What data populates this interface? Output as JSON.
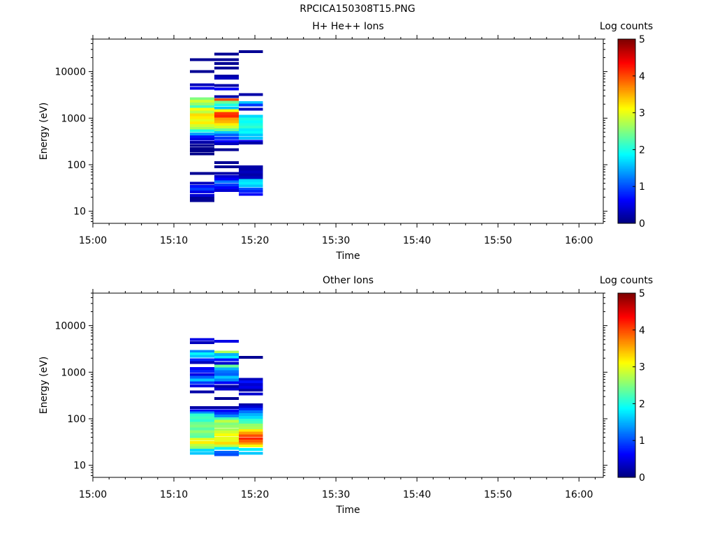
{
  "title": "RPCICA150308T15.PNG",
  "chart_data": [
    {
      "type": "heatmap",
      "title": "H+ He++ Ions",
      "xlabel": "Time",
      "ylabel": "Energy (eV)",
      "x_ticks": [
        "15:00",
        "15:10",
        "15:20",
        "15:30",
        "15:40",
        "15:50",
        "16:00"
      ],
      "y_ticks": [
        "10",
        "100",
        "1000",
        "10000"
      ],
      "yscale": "log",
      "ylim": [
        5.5,
        50000
      ],
      "colorbar": {
        "label": "Log counts",
        "ticks": [
          "0",
          "1",
          "2",
          "3",
          "4",
          "5"
        ],
        "range": [
          0,
          5
        ],
        "colormap": "jet"
      },
      "columns": [
        {
          "start": "15:12",
          "end": "15:15",
          "bins": [
            [
              18000,
              0.1
            ],
            [
              10000,
              0.1
            ],
            [
              5200,
              0.3
            ],
            [
              4400,
              0.5
            ],
            [
              2600,
              2.5
            ],
            [
              2300,
              2.9
            ],
            [
              2000,
              2.6
            ],
            [
              1750,
              2.2
            ],
            [
              1550,
              3.1
            ],
            [
              1350,
              2.8
            ],
            [
              1180,
              3.3
            ],
            [
              1030,
              3.2
            ],
            [
              900,
              3.0
            ],
            [
              790,
              3.2
            ],
            [
              690,
              2.9
            ],
            [
              600,
              2.7
            ],
            [
              530,
              2.0
            ],
            [
              460,
              1.4
            ],
            [
              400,
              0.7
            ],
            [
              350,
              0.5
            ],
            [
              300,
              0.2
            ],
            [
              260,
              0.1
            ],
            [
              220,
              0.05
            ],
            [
              200,
              0.05
            ],
            [
              170,
              0.05
            ],
            [
              65,
              0.1
            ],
            [
              40,
              0.3
            ],
            [
              34,
              0.7
            ],
            [
              30,
              0.9
            ],
            [
              26,
              0.5
            ],
            [
              22,
              0.4
            ],
            [
              19,
              0.1
            ],
            [
              17,
              0.1
            ]
          ]
        },
        {
          "start": "15:15",
          "end": "15:18",
          "bins": [
            [
              24000,
              0.1
            ],
            [
              18000,
              0.1
            ],
            [
              15000,
              0.1
            ],
            [
              12000,
              0.1
            ],
            [
              8000,
              0.2
            ],
            [
              7200,
              0.3
            ],
            [
              5000,
              0.2
            ],
            [
              4200,
              0.6
            ],
            [
              2900,
              0.2
            ],
            [
              2500,
              4.0
            ],
            [
              2200,
              2.4
            ],
            [
              1900,
              2.0
            ],
            [
              1650,
              1.6
            ],
            [
              1450,
              3.1
            ],
            [
              1270,
              4.1
            ],
            [
              1100,
              4.2
            ],
            [
              960,
              3.6
            ],
            [
              840,
              3.5
            ],
            [
              730,
              3.2
            ],
            [
              640,
              2.9
            ],
            [
              560,
              2.4
            ],
            [
              490,
              1.6
            ],
            [
              430,
              1.1
            ],
            [
              370,
              0.9
            ],
            [
              320,
              0.6
            ],
            [
              280,
              0.3
            ],
            [
              210,
              0.1
            ],
            [
              110,
              0.1
            ],
            [
              90,
              0.1
            ],
            [
              65,
              0.2
            ],
            [
              56,
              0.4
            ],
            [
              49,
              0.6
            ],
            [
              43,
              1.2
            ],
            [
              37,
              0.9
            ],
            [
              32,
              0.6
            ],
            [
              28,
              0.4
            ]
          ]
        },
        {
          "start": "15:18",
          "end": "15:21",
          "bins": [
            [
              27000,
              0.1
            ],
            [
              3200,
              0.2
            ],
            [
              2150,
              1.6
            ],
            [
              1900,
              0.9
            ],
            [
              1550,
              0.3
            ],
            [
              1100,
              1.7
            ],
            [
              960,
              2.0
            ],
            [
              840,
              1.9
            ],
            [
              730,
              2.0
            ],
            [
              640,
              2.1
            ],
            [
              560,
              1.8
            ],
            [
              490,
              1.9
            ],
            [
              430,
              1.6
            ],
            [
              370,
              1.6
            ],
            [
              320,
              0.5
            ],
            [
              290,
              0.2
            ],
            [
              90,
              0.2
            ],
            [
              80,
              0.2
            ],
            [
              70,
              0.3
            ],
            [
              61,
              0.2
            ],
            [
              53,
              0.3
            ],
            [
              46,
              1.7
            ],
            [
              40,
              1.8
            ],
            [
              35,
              1.6
            ],
            [
              30,
              1.0
            ],
            [
              27,
              0.8
            ],
            [
              23,
              0.6
            ]
          ]
        }
      ]
    },
    {
      "type": "heatmap",
      "title": "Other Ions",
      "xlabel": "Time",
      "ylabel": "Energy (eV)",
      "x_ticks": [
        "15:00",
        "15:10",
        "15:20",
        "15:30",
        "15:40",
        "15:50",
        "16:00"
      ],
      "y_ticks": [
        "10",
        "100",
        "1000",
        "10000"
      ],
      "yscale": "log",
      "ylim": [
        5.5,
        50000
      ],
      "colorbar": {
        "label": "Log counts",
        "ticks": [
          "0",
          "1",
          "2",
          "3",
          "4",
          "5"
        ],
        "range": [
          0,
          5
        ],
        "colormap": "jet"
      },
      "columns": [
        {
          "start": "15:12",
          "end": "15:15",
          "bins": [
            [
              5000,
              0.5
            ],
            [
              4300,
              0.3
            ],
            [
              2800,
              1.3
            ],
            [
              2500,
              1.9
            ],
            [
              2200,
              1.6
            ],
            [
              1850,
              0.8
            ],
            [
              1600,
              0.3
            ],
            [
              1200,
              0.6
            ],
            [
              1050,
              0.8
            ],
            [
              900,
              0.5
            ],
            [
              780,
              1.1
            ],
            [
              680,
              1.6
            ],
            [
              590,
              0.9
            ],
            [
              510,
              0.5
            ],
            [
              380,
              0.2
            ],
            [
              175,
              0.2
            ],
            [
              150,
              0.6
            ],
            [
              135,
              1.3
            ],
            [
              120,
              2.1
            ],
            [
              105,
              2.2
            ],
            [
              92,
              2.1
            ],
            [
              80,
              2.4
            ],
            [
              70,
              2.5
            ],
            [
              61,
              2.3
            ],
            [
              53,
              2.6
            ],
            [
              46,
              2.4
            ],
            [
              40,
              2.3
            ],
            [
              36,
              3.0
            ],
            [
              31,
              3.2
            ],
            [
              27,
              2.8
            ],
            [
              24,
              2.6
            ],
            [
              21,
              1.7
            ],
            [
              18,
              1.6
            ]
          ]
        },
        {
          "start": "15:15",
          "end": "15:18",
          "bins": [
            [
              4600,
              0.5
            ],
            [
              2700,
              2.7
            ],
            [
              2400,
              1.5
            ],
            [
              2100,
              1.8
            ],
            [
              1850,
              0.7
            ],
            [
              1550,
              0.4
            ],
            [
              1350,
              2.4
            ],
            [
              1180,
              1.5
            ],
            [
              1030,
              1.2
            ],
            [
              900,
              1.1
            ],
            [
              780,
              1.6
            ],
            [
              680,
              1.3
            ],
            [
              590,
              0.6
            ],
            [
              500,
              0.2
            ],
            [
              430,
              0.4
            ],
            [
              270,
              0.1
            ],
            [
              175,
              0.2
            ],
            [
              150,
              0.6
            ],
            [
              130,
              0.9
            ],
            [
              115,
              1.3
            ],
            [
              100,
              2.2
            ],
            [
              88,
              2.8
            ],
            [
              77,
              2.5
            ],
            [
              68,
              2.6
            ],
            [
              59,
              2.7
            ],
            [
              52,
              2.9
            ],
            [
              45,
              3.1
            ],
            [
              39,
              3.0
            ],
            [
              34,
              3.0
            ],
            [
              30,
              3.3
            ],
            [
              26,
              2.8
            ],
            [
              23,
              1.8
            ],
            [
              19,
              1.1
            ],
            [
              17,
              1.0
            ]
          ]
        },
        {
          "start": "15:18",
          "end": "15:21",
          "bins": [
            [
              2100,
              0.1
            ],
            [
              700,
              0.3
            ],
            [
              620,
              0.7
            ],
            [
              540,
              0.4
            ],
            [
              470,
              0.5
            ],
            [
              410,
              0.2
            ],
            [
              340,
              0.4
            ],
            [
              200,
              0.2
            ],
            [
              180,
              0.4
            ],
            [
              160,
              0.8
            ],
            [
              140,
              1.2
            ],
            [
              122,
              1.5
            ],
            [
              107,
              1.7
            ],
            [
              94,
              2.1
            ],
            [
              83,
              2.2
            ],
            [
              73,
              2.6
            ],
            [
              64,
              2.7
            ],
            [
              56,
              3.2
            ],
            [
              49,
              3.6
            ],
            [
              43,
              4.0
            ],
            [
              37,
              4.2
            ],
            [
              33,
              3.9
            ],
            [
              29,
              3.6
            ],
            [
              26,
              3.1
            ],
            [
              22,
              1.8
            ],
            [
              18,
              1.6
            ]
          ]
        }
      ]
    }
  ]
}
